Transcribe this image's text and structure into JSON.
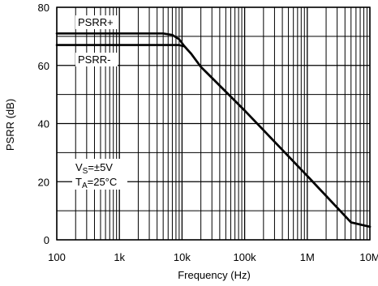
{
  "chart_data": {
    "type": "line",
    "title": "",
    "xlabel": "Frequency (Hz)",
    "ylabel": "PSRR (dB)",
    "xscale": "log",
    "xlim": [
      100,
      10000000
    ],
    "ylim": [
      0,
      80
    ],
    "grid": true,
    "x_ticks": [
      {
        "value": 100,
        "label": "100"
      },
      {
        "value": 1000,
        "label": "1k"
      },
      {
        "value": 10000,
        "label": "10k"
      },
      {
        "value": 100000,
        "label": "100k"
      },
      {
        "value": 1000000,
        "label": "1M"
      },
      {
        "value": 10000000,
        "label": "10M"
      }
    ],
    "y_ticks": [
      {
        "value": 0,
        "label": "0"
      },
      {
        "value": 20,
        "label": "20"
      },
      {
        "value": 40,
        "label": "40"
      },
      {
        "value": 60,
        "label": "60"
      },
      {
        "value": 80,
        "label": "80"
      }
    ],
    "series": [
      {
        "name": "PSRR+",
        "x": [
          100,
          1000,
          5000,
          7000,
          9000,
          11000,
          14000,
          20000,
          100000,
          1000000,
          5000000,
          10000000
        ],
        "y": [
          71,
          71,
          71,
          70.5,
          69,
          66.5,
          64,
          59.5,
          44.5,
          22,
          6,
          4.5
        ]
      },
      {
        "name": "PSRR-",
        "x": [
          100,
          1000,
          9000,
          11000,
          14000,
          20000,
          100000,
          1000000,
          5000000,
          10000000
        ],
        "y": [
          67,
          67,
          67,
          66.5,
          64,
          59.5,
          44.5,
          22,
          6,
          4.5
        ]
      }
    ],
    "annotations": {
      "psrr_plus": "PSRR+",
      "psrr_minus": "PSRR-",
      "vs_main": "V",
      "vs_sub": "S",
      "vs_value": "=±5V",
      "ta_main": "T",
      "ta_sub": "A",
      "ta_value": "=25°C"
    }
  }
}
